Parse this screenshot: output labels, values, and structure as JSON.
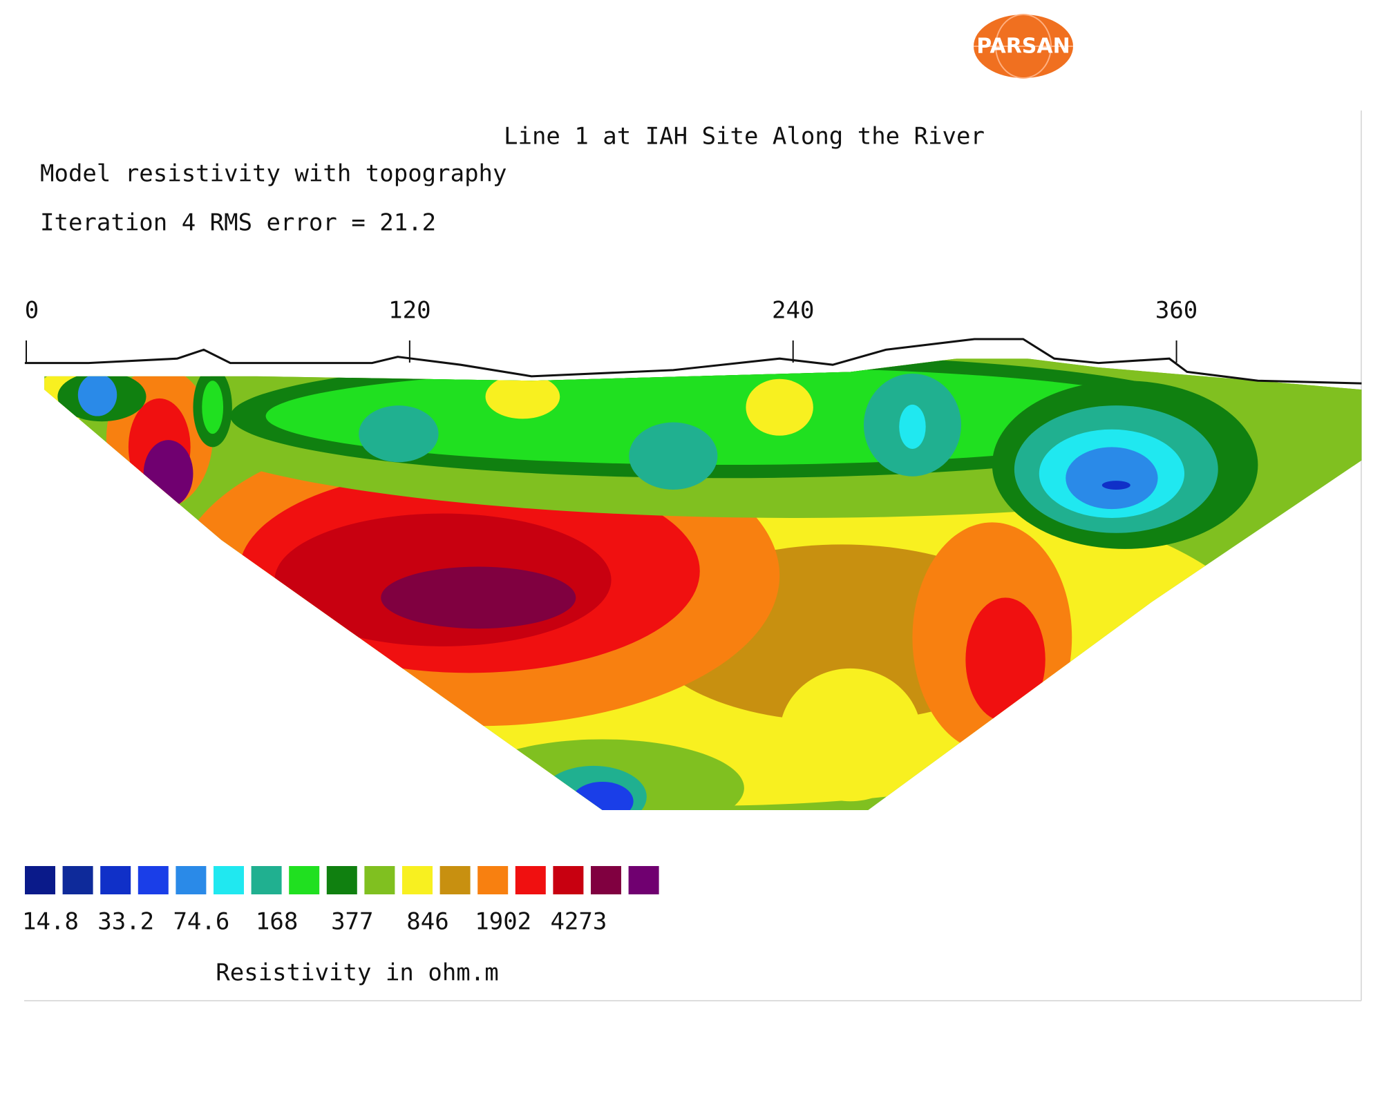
{
  "logo": "PARSAN",
  "chart_data": {
    "type": "contour",
    "title": "Line 1 at IAH Site Along the River",
    "subtitle": [
      "Model resistivity with topography",
      "Iteration 4 RMS error = 21.2"
    ],
    "xlim": [
      0,
      420
    ],
    "xticks": [
      0,
      120,
      240,
      360
    ],
    "colorbar": {
      "colors": [
        "#0a1a8a",
        "#0e2a9a",
        "#1030c8",
        "#1a3ee8",
        "#2a8ae8",
        "#20e8f0",
        "#20b090",
        "#20e020",
        "#108010",
        "#80c020",
        "#f8f020",
        "#c89010",
        "#f88010",
        "#f01010",
        "#c80010",
        "#800040",
        "#700070"
      ],
      "ticks": [
        14.8,
        33.2,
        74.6,
        168,
        377,
        846,
        1902,
        4273
      ],
      "label": "Resistivity in ohm.m"
    }
  }
}
